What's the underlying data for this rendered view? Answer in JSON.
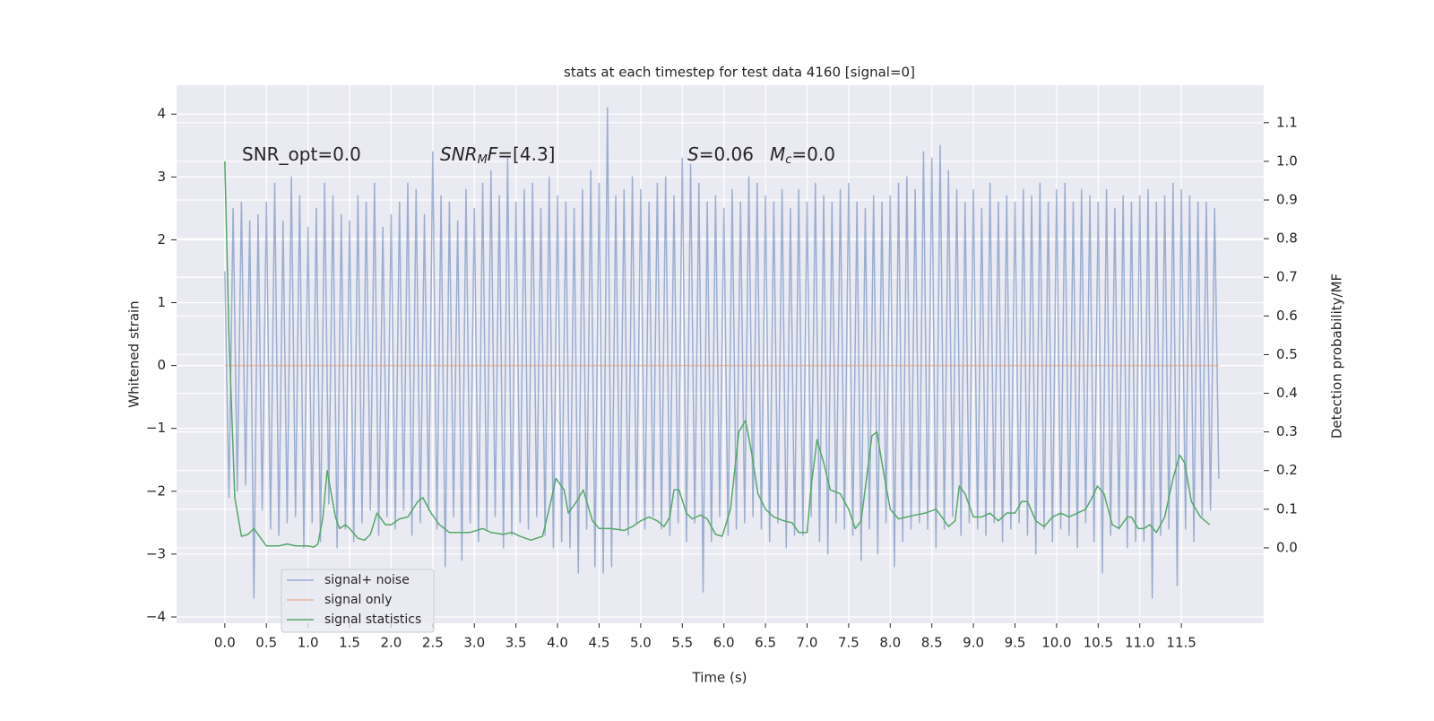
{
  "chart_data": {
    "type": "line",
    "title": "stats at each timestep for test data 4160 [signal=0]",
    "xlabel": "Time (s)",
    "ylabel": "Whitened strain",
    "y2label": "Detection probability/MF",
    "xlim": [
      -0.58,
      12.49
    ],
    "ylim": [
      -4.1,
      4.46
    ],
    "y2lim": [
      -0.195,
      1.197
    ],
    "xticks": [
      {
        "value": 0,
        "label": "0.0"
      },
      0.5,
      {
        "value": 1,
        "label": "1.0"
      },
      1.5,
      {
        "value": 2,
        "label": "2.0"
      },
      2.5,
      {
        "value": 3,
        "label": "3.0"
      },
      3.5,
      {
        "value": 4,
        "label": "4.0"
      },
      4.5,
      {
        "value": 5,
        "label": "5.0"
      },
      5.5,
      {
        "value": 6,
        "label": "6.0"
      },
      6.5,
      {
        "value": 7,
        "label": "7.0"
      },
      7.5,
      {
        "value": 8,
        "label": "8.0"
      },
      8.5,
      {
        "value": 9,
        "label": "9.0"
      },
      9.5,
      {
        "value": 10,
        "label": "10.0"
      },
      10.5,
      {
        "value": 11,
        "label": "11.0"
      },
      11.5
    ],
    "yticks": [
      {
        "value": -4,
        "label": "−4"
      },
      {
        "value": -3,
        "label": "−3"
      },
      {
        "value": -2,
        "label": "−2"
      },
      {
        "value": -1,
        "label": "−1"
      },
      0,
      1,
      2,
      3,
      4
    ],
    "y2ticks": [
      {
        "value": 0,
        "label": "0.0"
      },
      0.1,
      0.2,
      0.3,
      0.4,
      0.5,
      0.6,
      0.7,
      0.8,
      0.9,
      {
        "value": 1,
        "label": "1.0"
      },
      1.1
    ],
    "grid": true,
    "legend": "lower left",
    "annotations": [
      {
        "segments": [
          {
            "text": "SNR_opt=0.0"
          }
        ]
      },
      {
        "segments": [
          {
            "text": "SNR",
            "style": "italic"
          },
          {
            "text": "M",
            "style": "italic",
            "baseline": "sub"
          },
          {
            "text": "F",
            "style": "italic"
          },
          {
            "text": "=[4.3]"
          }
        ]
      },
      {
        "segments": [
          {
            "text": "S",
            "style": "italic"
          },
          {
            "text": "=0.06"
          }
        ]
      },
      {
        "segments": [
          {
            "text": "M",
            "style": "italic"
          },
          {
            "text": "c",
            "style": "italic",
            "baseline": "sub"
          },
          {
            "text": "=0.0"
          }
        ]
      }
    ],
    "series": [
      {
        "name": "signal+ noise",
        "color": "#4c72b0",
        "x": [
          0,
          0.05,
          0.1,
          0.15,
          0.2,
          0.25,
          0.3,
          0.35,
          0.4,
          0.45,
          0.5,
          0.55,
          0.6,
          0.65,
          0.7,
          0.75,
          0.8,
          0.85,
          0.9,
          0.95,
          1,
          1.05,
          1.1,
          1.15,
          1.2,
          1.25,
          1.3,
          1.35,
          1.4,
          1.45,
          1.5,
          1.55,
          1.6,
          1.65,
          1.7,
          1.75,
          1.8,
          1.85,
          1.9,
          1.95,
          2,
          2.05,
          2.1,
          2.15,
          2.2,
          2.25,
          2.3,
          2.35,
          2.4,
          2.45,
          2.5,
          2.55,
          2.6,
          2.65,
          2.7,
          2.75,
          2.8,
          2.85,
          2.9,
          2.95,
          3,
          3.05,
          3.1,
          3.15,
          3.2,
          3.25,
          3.3,
          3.35,
          3.4,
          3.45,
          3.5,
          3.55,
          3.6,
          3.65,
          3.7,
          3.75,
          3.8,
          3.85,
          3.9,
          3.95,
          4,
          4.05,
          4.1,
          4.15,
          4.2,
          4.25,
          4.3,
          4.35,
          4.4,
          4.45,
          4.5,
          4.55,
          4.6,
          4.65,
          4.7,
          4.75,
          4.8,
          4.85,
          4.9,
          4.95,
          5,
          5.05,
          5.1,
          5.15,
          5.2,
          5.25,
          5.3,
          5.35,
          5.4,
          5.45,
          5.5,
          5.55,
          5.6,
          5.65,
          5.7,
          5.75,
          5.8,
          5.85,
          5.9,
          5.95,
          6,
          6.05,
          6.1,
          6.15,
          6.2,
          6.25,
          6.3,
          6.35,
          6.4,
          6.45,
          6.5,
          6.55,
          6.6,
          6.65,
          6.7,
          6.75,
          6.8,
          6.85,
          6.9,
          6.95,
          7,
          7.05,
          7.1,
          7.15,
          7.2,
          7.25,
          7.3,
          7.35,
          7.4,
          7.45,
          7.5,
          7.55,
          7.6,
          7.65,
          7.7,
          7.75,
          7.8,
          7.85,
          7.9,
          7.95,
          8,
          8.05,
          8.1,
          8.15,
          8.2,
          8.25,
          8.3,
          8.35,
          8.4,
          8.45,
          8.5,
          8.55,
          8.6,
          8.65,
          8.7,
          8.75,
          8.8,
          8.85,
          8.9,
          8.95,
          9,
          9.05,
          9.1,
          9.15,
          9.2,
          9.25,
          9.3,
          9.35,
          9.4,
          9.45,
          9.5,
          9.55,
          9.6,
          9.65,
          9.7,
          9.75,
          9.8,
          9.85,
          9.9,
          9.95,
          10,
          10.05,
          10.1,
          10.15,
          10.2,
          10.25,
          10.3,
          10.35,
          10.4,
          10.45,
          10.5,
          10.55,
          10.6,
          10.65,
          10.7,
          10.75,
          10.8,
          10.85,
          10.9,
          10.95,
          11,
          11.05,
          11.1,
          11.15,
          11.2,
          11.25,
          11.3,
          11.35,
          11.4,
          11.45,
          11.5,
          11.55,
          11.6,
          11.65,
          11.7,
          11.75,
          11.8,
          11.85,
          11.9,
          11.95
        ],
        "values": [
          1.5,
          -2.1,
          2.5,
          -2.0,
          2.6,
          -1.9,
          2.3,
          -3.7,
          2.4,
          -2.3,
          2.6,
          -2.6,
          2.9,
          -2.7,
          2.3,
          -2.5,
          3.0,
          -2.4,
          2.7,
          -2.9,
          2.2,
          -2.5,
          2.5,
          -2.8,
          2.9,
          -2.2,
          2.7,
          -2.9,
          2.4,
          -2.6,
          2.3,
          -2.8,
          2.7,
          -2.5,
          2.6,
          -2.3,
          2.9,
          -2.7,
          2.2,
          -2.4,
          2.4,
          -2.6,
          2.6,
          -2.3,
          2.9,
          -2.7,
          2.8,
          -2.5,
          2.4,
          -2.3,
          3.4,
          -2.6,
          2.7,
          -3.2,
          2.6,
          -2.4,
          2.3,
          -3.1,
          2.8,
          -2.5,
          2.5,
          -2.8,
          2.9,
          -2.6,
          3.1,
          -2.4,
          2.7,
          -2.9,
          3.3,
          -2.7,
          2.6,
          -2.5,
          2.8,
          -2.6,
          2.9,
          -2.4,
          2.5,
          -2.7,
          3.0,
          -2.9,
          2.7,
          -2.8,
          2.6,
          -2.9,
          2.5,
          -3.3,
          2.8,
          -2.6,
          3.1,
          -3.2,
          2.9,
          -3.3,
          4.1,
          -3.2,
          2.7,
          -2.6,
          2.8,
          -2.7,
          3.0,
          -2.5,
          2.8,
          -2.6,
          2.6,
          -2.4,
          2.9,
          -2.6,
          3.0,
          -2.7,
          2.7,
          -2.5,
          3.3,
          -2.8,
          3.2,
          -2.5,
          2.9,
          -3.6,
          2.6,
          -2.8,
          2.7,
          -2.4,
          2.5,
          -2.7,
          2.8,
          -2.6,
          2.6,
          -2.5,
          3.0,
          -2.4,
          2.9,
          -2.6,
          2.7,
          -2.8,
          2.6,
          -2.5,
          2.8,
          -2.9,
          2.5,
          -2.7,
          2.8,
          -2.7,
          2.6,
          -2.4,
          2.9,
          -2.8,
          2.7,
          -3.0,
          2.6,
          -2.5,
          2.8,
          -2.6,
          2.9,
          -2.7,
          2.6,
          -3.1,
          2.5,
          -2.6,
          2.7,
          -3.0,
          2.6,
          -2.5,
          2.7,
          -3.2,
          2.9,
          -2.8,
          3.0,
          -2.6,
          2.8,
          -2.5,
          3.4,
          -2.6,
          3.3,
          -2.9,
          3.5,
          -2.6,
          3.1,
          -2.4,
          2.8,
          -2.7,
          2.6,
          -2.5,
          2.8,
          -2.6,
          2.5,
          -2.7,
          2.9,
          -2.5,
          2.6,
          -2.8,
          2.7,
          -2.6,
          2.6,
          -2.5,
          2.8,
          -2.7,
          2.7,
          -3.0,
          2.9,
          -2.6,
          2.6,
          -2.8,
          2.8,
          -2.6,
          2.9,
          -2.7,
          2.6,
          -2.9,
          2.8,
          -2.5,
          2.7,
          -2.8,
          2.6,
          -3.3,
          2.8,
          -2.7,
          2.5,
          -2.6,
          2.7,
          -2.9,
          2.6,
          -2.8,
          2.7,
          -2.8,
          2.8,
          -3.7,
          2.6,
          -2.7,
          2.7,
          -2.6,
          2.9,
          -3.5,
          2.8,
          -2.6,
          2.7,
          -2.8,
          2.6,
          -2.4,
          2.6,
          -2.3,
          2.5,
          -1.8
        ]
      },
      {
        "name": "signal only",
        "color": "#dd8452",
        "x": [
          0,
          11.95
        ],
        "values": [
          0,
          0
        ]
      },
      {
        "name": "signal statistics",
        "color": "#55a868",
        "axis": "y2",
        "x": [
          0,
          0.05,
          0.12,
          0.2,
          0.28,
          0.35,
          0.45,
          0.5,
          0.65,
          0.75,
          0.85,
          1.0,
          1.07,
          1.12,
          1.18,
          1.23,
          1.28,
          1.33,
          1.38,
          1.45,
          1.5,
          1.6,
          1.68,
          1.75,
          1.83,
          1.93,
          2.0,
          2.1,
          2.2,
          2.32,
          2.38,
          2.48,
          2.58,
          2.7,
          2.85,
          2.95,
          3.1,
          3.2,
          3.35,
          3.45,
          3.55,
          3.68,
          3.82,
          3.92,
          3.98,
          4.08,
          4.13,
          4.23,
          4.31,
          4.42,
          4.5,
          4.65,
          4.8,
          4.9,
          5.0,
          5.1,
          5.2,
          5.28,
          5.35,
          5.4,
          5.46,
          5.55,
          5.62,
          5.72,
          5.8,
          5.9,
          5.98,
          6.08,
          6.18,
          6.26,
          6.33,
          6.41,
          6.5,
          6.6,
          6.72,
          6.82,
          6.9,
          7.0,
          7.05,
          7.12,
          7.2,
          7.28,
          7.4,
          7.5,
          7.58,
          7.65,
          7.78,
          7.84,
          7.9,
          8.0,
          8.1,
          8.2,
          8.3,
          8.42,
          8.55,
          8.62,
          8.7,
          8.78,
          8.83,
          8.9,
          9.0,
          9.1,
          9.2,
          9.3,
          9.4,
          9.5,
          9.58,
          9.65,
          9.75,
          9.85,
          9.95,
          10.05,
          10.15,
          10.25,
          10.35,
          10.45,
          10.49,
          10.57,
          10.67,
          10.75,
          10.85,
          10.9,
          10.98,
          11.05,
          11.12,
          11.2,
          11.3,
          11.4,
          11.48,
          11.54,
          11.62,
          11.73,
          11.84
        ],
        "values": [
          1.0,
          0.55,
          0.13,
          0.03,
          0.035,
          0.05,
          0.02,
          0.005,
          0.005,
          0.01,
          0.005,
          0.005,
          0.002,
          0.01,
          0.08,
          0.2,
          0.14,
          0.08,
          0.05,
          0.06,
          0.05,
          0.025,
          0.02,
          0.035,
          0.09,
          0.06,
          0.06,
          0.075,
          0.08,
          0.12,
          0.13,
          0.09,
          0.06,
          0.04,
          0.04,
          0.04,
          0.05,
          0.04,
          0.035,
          0.04,
          0.03,
          0.02,
          0.03,
          0.12,
          0.18,
          0.15,
          0.09,
          0.12,
          0.15,
          0.07,
          0.05,
          0.05,
          0.045,
          0.055,
          0.07,
          0.08,
          0.07,
          0.055,
          0.08,
          0.15,
          0.15,
          0.09,
          0.075,
          0.085,
          0.075,
          0.035,
          0.03,
          0.1,
          0.3,
          0.33,
          0.25,
          0.14,
          0.1,
          0.08,
          0.07,
          0.065,
          0.04,
          0.04,
          0.16,
          0.28,
          0.22,
          0.15,
          0.14,
          0.1,
          0.05,
          0.07,
          0.29,
          0.3,
          0.22,
          0.1,
          0.075,
          0.08,
          0.085,
          0.09,
          0.1,
          0.08,
          0.055,
          0.07,
          0.16,
          0.14,
          0.08,
          0.08,
          0.09,
          0.07,
          0.09,
          0.09,
          0.12,
          0.12,
          0.07,
          0.055,
          0.08,
          0.09,
          0.08,
          0.09,
          0.1,
          0.14,
          0.16,
          0.14,
          0.06,
          0.05,
          0.08,
          0.08,
          0.05,
          0.05,
          0.06,
          0.04,
          0.08,
          0.18,
          0.24,
          0.22,
          0.12,
          0.08,
          0.06
        ]
      }
    ]
  }
}
